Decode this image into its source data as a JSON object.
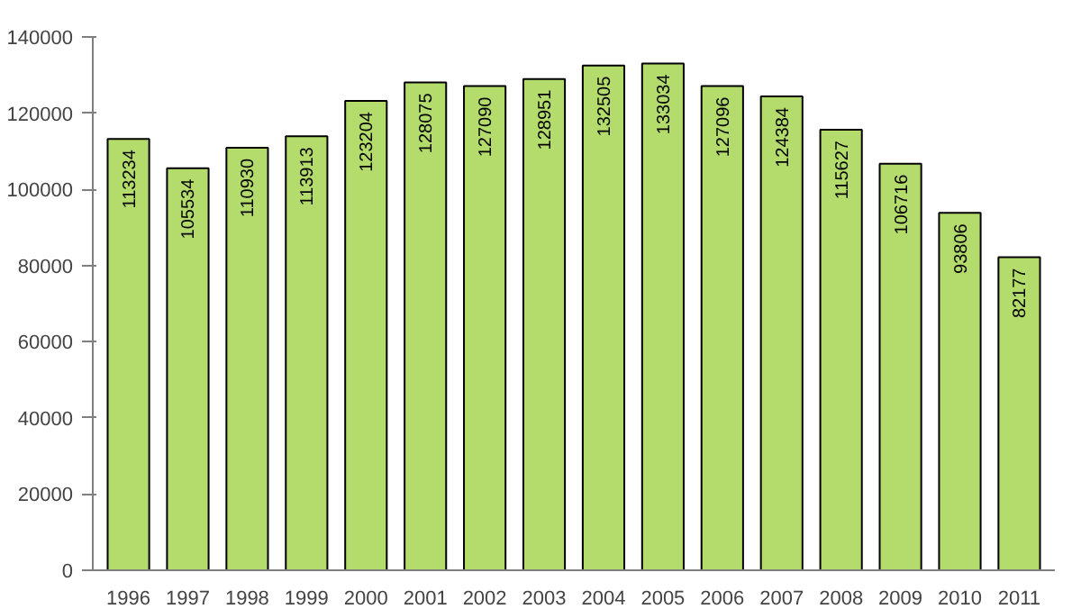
{
  "chart_data": {
    "type": "bar",
    "categories": [
      "1996",
      "1997",
      "1998",
      "1999",
      "2000",
      "2001",
      "2002",
      "2003",
      "2004",
      "2005",
      "2006",
      "2007",
      "2008",
      "2009",
      "2010",
      "2011"
    ],
    "values": [
      113234,
      105534,
      110930,
      113913,
      123204,
      128075,
      127090,
      128951,
      132505,
      133034,
      127096,
      124384,
      115627,
      106716,
      93806,
      82177
    ],
    "color": "#b3dc6c",
    "ylim": [
      0,
      140000
    ],
    "yticks": [
      0,
      20000,
      40000,
      60000,
      80000,
      100000,
      120000,
      140000
    ],
    "grid": false,
    "data_labels": true
  }
}
